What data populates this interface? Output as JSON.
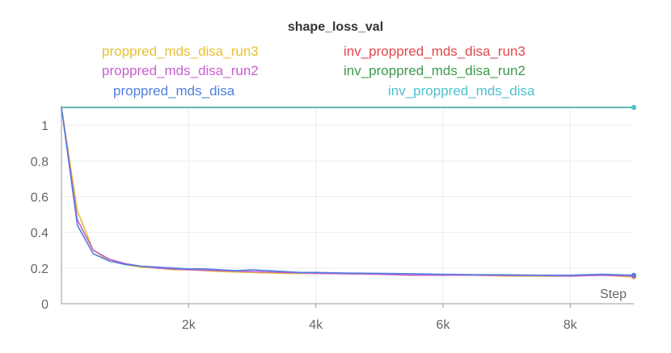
{
  "chart_data": {
    "type": "line",
    "title": "shape_loss_val",
    "xlabel": "Step",
    "ylabel": "",
    "xlim": [
      0,
      9000
    ],
    "ylim": [
      0,
      1.1
    ],
    "x_ticks": [
      {
        "value": 2000,
        "label": "2k"
      },
      {
        "value": 4000,
        "label": "4k"
      },
      {
        "value": 6000,
        "label": "6k"
      },
      {
        "value": 8000,
        "label": "8k"
      }
    ],
    "y_ticks": [
      {
        "value": 0,
        "label": "0"
      },
      {
        "value": 0.2,
        "label": "0.2"
      },
      {
        "value": 0.4,
        "label": "0.4"
      },
      {
        "value": 0.6,
        "label": "0.6"
      },
      {
        "value": 0.8,
        "label": "0.8"
      },
      {
        "value": 1,
        "label": "1"
      }
    ],
    "grid": true,
    "legend_position": "top",
    "series": [
      {
        "name": "proppred_mds_disa_run3",
        "color": "#e8c033",
        "x": [
          0,
          250,
          500,
          750,
          1000,
          1250,
          1500,
          1750,
          2000,
          2500,
          3000,
          3500,
          4000,
          4500,
          5000,
          5500,
          6000,
          6500,
          7000,
          7500,
          8000,
          8500,
          9000
        ],
        "y": [
          1.1,
          0.52,
          0.3,
          0.24,
          0.22,
          0.205,
          0.2,
          0.19,
          0.19,
          0.18,
          0.175,
          0.17,
          0.17,
          0.168,
          0.165,
          0.165,
          0.16,
          0.16,
          0.155,
          0.155,
          0.155,
          0.16,
          0.15
        ]
      },
      {
        "name": "inv_proppred_mds_disa_run3",
        "color": "#e0484b",
        "x": [
          0,
          1000,
          2000,
          3000,
          4000,
          5000,
          6000,
          7000,
          8000,
          9000
        ],
        "y": [
          1.1,
          1.1,
          1.1,
          1.1,
          1.1,
          1.1,
          1.1,
          1.1,
          1.1,
          1.1
        ]
      },
      {
        "name": "proppred_mds_disa_run2",
        "color": "#c85fd0",
        "x": [
          0,
          250,
          500,
          750,
          1000,
          1250,
          1500,
          1750,
          2000,
          2500,
          3000,
          3500,
          4000,
          4500,
          5000,
          5500,
          6000,
          6500,
          7000,
          7500,
          8000,
          8500,
          9000
        ],
        "y": [
          1.1,
          0.47,
          0.3,
          0.25,
          0.225,
          0.21,
          0.2,
          0.195,
          0.19,
          0.185,
          0.18,
          0.175,
          0.17,
          0.168,
          0.165,
          0.16,
          0.16,
          0.16,
          0.158,
          0.158,
          0.155,
          0.16,
          0.155
        ]
      },
      {
        "name": "inv_proppred_mds_disa_run2",
        "color": "#3a9a4a",
        "x": [
          0,
          1000,
          2000,
          3000,
          4000,
          5000,
          6000,
          7000,
          8000,
          9000
        ],
        "y": [
          1.1,
          1.1,
          1.1,
          1.1,
          1.1,
          1.1,
          1.1,
          1.1,
          1.1,
          1.1
        ]
      },
      {
        "name": "proppred_mds_disa",
        "color": "#4f7fe0",
        "x": [
          0,
          250,
          500,
          750,
          1000,
          1250,
          1500,
          1750,
          2000,
          2250,
          2500,
          2750,
          3000,
          3250,
          3500,
          3750,
          4000,
          4500,
          5000,
          5500,
          6000,
          6500,
          7000,
          7500,
          8000,
          8500,
          9000
        ],
        "y": [
          1.1,
          0.44,
          0.28,
          0.24,
          0.22,
          0.21,
          0.205,
          0.2,
          0.195,
          0.195,
          0.19,
          0.185,
          0.19,
          0.185,
          0.18,
          0.175,
          0.175,
          0.172,
          0.17,
          0.168,
          0.165,
          0.163,
          0.162,
          0.16,
          0.16,
          0.165,
          0.16
        ]
      },
      {
        "name": "inv_proppred_mds_disa",
        "color": "#4fc0d0",
        "x": [
          0,
          1000,
          2000,
          3000,
          4000,
          5000,
          6000,
          7000,
          8000,
          9000
        ],
        "y": [
          1.1,
          1.1,
          1.1,
          1.1,
          1.1,
          1.1,
          1.1,
          1.1,
          1.1,
          1.1
        ]
      }
    ]
  }
}
